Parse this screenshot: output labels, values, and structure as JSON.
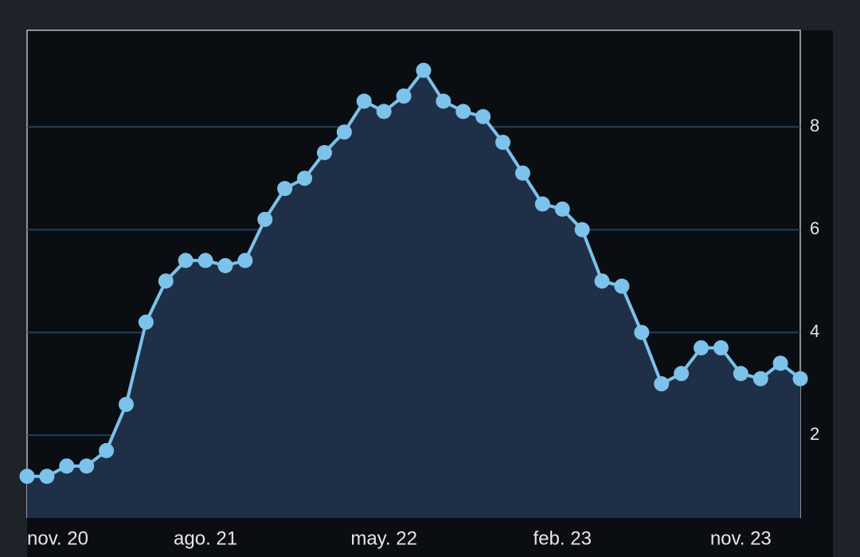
{
  "chart_data": {
    "type": "line",
    "categories": [
      "nov. 20",
      null,
      null,
      null,
      null,
      null,
      null,
      null,
      null,
      "ago. 21",
      null,
      null,
      null,
      null,
      null,
      null,
      null,
      null,
      "may. 22",
      null,
      null,
      null,
      null,
      null,
      null,
      null,
      null,
      "feb. 23",
      null,
      null,
      null,
      null,
      null,
      null,
      null,
      null,
      "nov. 23",
      null,
      null,
      null
    ],
    "series": [
      {
        "color": "#7cc2ea",
        "values": [
          1.2,
          1.2,
          1.4,
          1.4,
          1.7,
          2.6,
          4.2,
          5.0,
          5.4,
          5.4,
          5.3,
          5.4,
          6.2,
          6.8,
          7.0,
          7.5,
          7.9,
          8.5,
          8.3,
          8.6,
          9.1,
          8.5,
          8.3,
          8.2,
          7.7,
          7.1,
          6.5,
          6.4,
          6.0,
          5.0,
          4.9,
          4.0,
          3.0,
          3.2,
          3.7,
          3.7,
          3.2,
          3.1,
          3.4,
          3.1
        ]
      }
    ],
    "ylim": [
      0.39,
      9.88
    ],
    "yticks": [
      2,
      4,
      6,
      8
    ],
    "grid": true,
    "area_color": "#1f2f48"
  }
}
